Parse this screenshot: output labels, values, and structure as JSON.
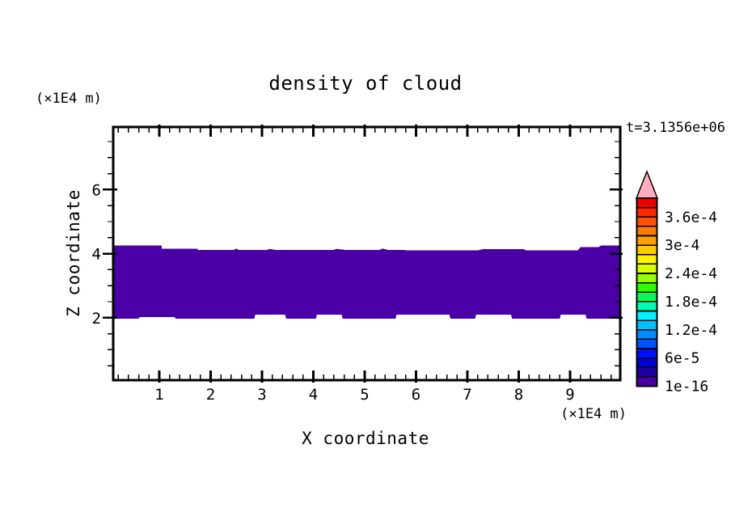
{
  "figure": {
    "title": "density of cloud",
    "timestamp": "t=3.1356e+06",
    "x_axis": {
      "label": "X coordinate",
      "unit": "(×1E4 m)"
    },
    "z_axis": {
      "label": "Z coordinate",
      "unit": "(×1E4 m)"
    }
  },
  "chart_data": {
    "type": "heatmap",
    "title": "density of cloud",
    "time_annotation": "t=3.1356e+06",
    "xlabel": "X coordinate",
    "ylabel": "Z coordinate",
    "x_unit_scale": "(×1E4 m)",
    "y_unit_scale": "(×1E4 m)",
    "xlim": [
      0,
      10
    ],
    "ylim": [
      0,
      7.95
    ],
    "x_ticks": [
      1,
      2,
      3,
      4,
      5,
      6,
      7,
      8,
      9
    ],
    "x_minor_step": 0.2,
    "y_ticks": [
      2,
      4,
      6
    ],
    "y_minor_step": 0.5,
    "grid": false,
    "band": {
      "description": "single filled contour band (lowest density level) spanning full x range",
      "fill_color": "#4a00a6",
      "z_top_mean": 4.2,
      "z_bottom_mean": 2.0,
      "top_edge": [
        [
          0.1,
          4.25
        ],
        [
          1.05,
          4.25
        ],
        [
          1.05,
          4.15
        ],
        [
          1.75,
          4.15
        ],
        [
          1.75,
          4.12
        ],
        [
          2.45,
          4.12
        ],
        [
          2.5,
          4.16
        ],
        [
          2.55,
          4.12
        ],
        [
          3.1,
          4.12
        ],
        [
          3.15,
          4.15
        ],
        [
          3.25,
          4.12
        ],
        [
          4.4,
          4.12
        ],
        [
          4.45,
          4.15
        ],
        [
          4.6,
          4.12
        ],
        [
          5.3,
          4.12
        ],
        [
          5.35,
          4.16
        ],
        [
          5.45,
          4.12
        ],
        [
          6.1,
          4.1
        ],
        [
          7.2,
          4.1
        ],
        [
          7.3,
          4.14
        ],
        [
          8.1,
          4.14
        ],
        [
          8.15,
          4.1
        ],
        [
          9.15,
          4.1
        ],
        [
          9.2,
          4.2
        ],
        [
          9.55,
          4.2
        ],
        [
          9.6,
          4.25
        ],
        [
          9.97,
          4.25
        ]
      ],
      "bottom_edge": [
        [
          0.1,
          1.97
        ],
        [
          0.6,
          1.97
        ],
        [
          0.62,
          2.02
        ],
        [
          1.3,
          2.02
        ],
        [
          1.32,
          1.97
        ],
        [
          2.85,
          1.97
        ],
        [
          2.87,
          2.1
        ],
        [
          3.45,
          2.1
        ],
        [
          3.47,
          1.97
        ],
        [
          4.05,
          1.97
        ],
        [
          4.07,
          2.1
        ],
        [
          4.55,
          2.1
        ],
        [
          4.57,
          1.97
        ],
        [
          5.6,
          1.97
        ],
        [
          5.62,
          2.1
        ],
        [
          6.65,
          2.1
        ],
        [
          6.67,
          1.97
        ],
        [
          7.15,
          1.97
        ],
        [
          7.17,
          2.1
        ],
        [
          7.85,
          2.1
        ],
        [
          7.87,
          1.97
        ],
        [
          8.8,
          1.97
        ],
        [
          8.82,
          2.1
        ],
        [
          9.3,
          2.1
        ],
        [
          9.32,
          1.97
        ],
        [
          9.97,
          1.97
        ]
      ]
    },
    "colorbar": {
      "tick_labels": [
        "3.6e-4",
        "3e-4",
        "2.4e-4",
        "1.8e-4",
        "1.2e-4",
        "6e-5",
        "1e-16"
      ],
      "label_boundary_indices": [
        2,
        5,
        8,
        11,
        14,
        17,
        20
      ],
      "cell_colors_top_to_bottom": [
        "#ee0000",
        "#fc2800",
        "#ff5200",
        "#ff7a00",
        "#ffa200",
        "#ffc900",
        "#fff200",
        "#d8ff00",
        "#96ff00",
        "#2eff00",
        "#00ff55",
        "#00ffae",
        "#00f2ff",
        "#00c0ff",
        "#008cff",
        "#0051ff",
        "#000fff",
        "#0000d2",
        "#1c00a2",
        "#4a00a6"
      ],
      "overflow_arrow_color": "#ffaec0"
    }
  }
}
